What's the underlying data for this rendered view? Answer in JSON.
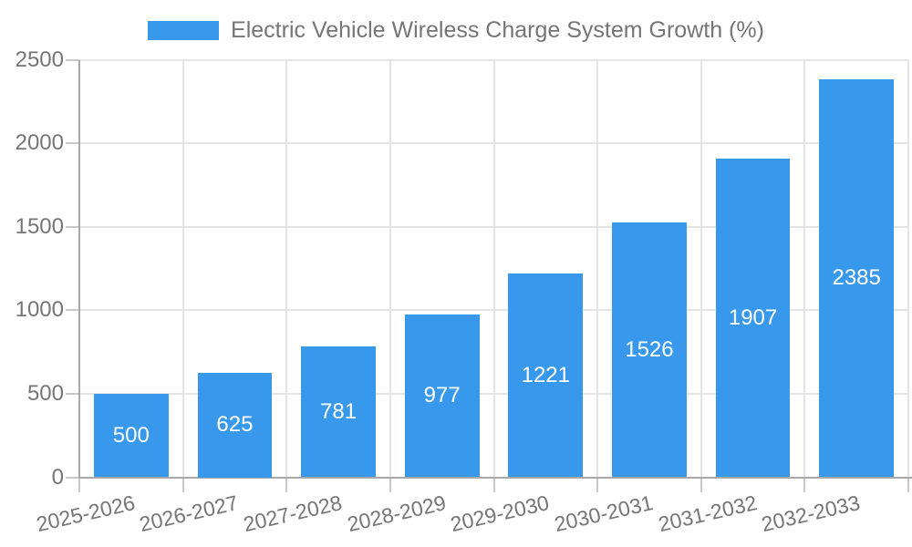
{
  "chart_data": {
    "type": "bar",
    "title": "Electric Vehicle Wireless Charge System Growth (%)",
    "categories": [
      "2025-2026",
      "2026-2027",
      "2027-2028",
      "2028-2029",
      "2029-2030",
      "2030-2031",
      "2031-2032",
      "2032-2033"
    ],
    "values": [
      500,
      625,
      781,
      977,
      1221,
      1526,
      1907,
      2385
    ],
    "xlabel": "",
    "ylabel": "",
    "ylim": [
      0,
      2500
    ],
    "yticks": [
      0,
      500,
      1000,
      1500,
      2000,
      2500
    ],
    "grid": true,
    "legend_position": "top-center",
    "value_label_position": "inside-center",
    "colors": {
      "bar": "#3899EC",
      "text": "#757575",
      "grid": "#E4E4E4",
      "tick": "#C9C9C9",
      "axis": "#A8A8A8",
      "value_label": "#FFFFFF"
    }
  }
}
